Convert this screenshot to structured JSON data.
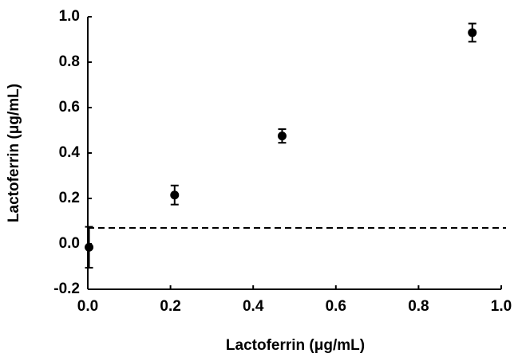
{
  "chart_data": {
    "type": "scatter",
    "xlabel": "Lactoferrin (μg/mL)",
    "ylabel": "Lactoferrin (μg/mL)",
    "x": [
      0.003,
      0.21,
      0.47,
      0.93
    ],
    "series": [
      {
        "color": "#000000",
        "values": [
          -0.015,
          0.215,
          0.475,
          0.93
        ],
        "errors": [
          0.09,
          0.042,
          0.03,
          0.04
        ]
      }
    ],
    "reference_line": {
      "value": 0.07,
      "style": "dashed"
    },
    "xlim": [
      0,
      1
    ],
    "ylim": [
      -0.2,
      1
    ],
    "xticks": [
      {
        "value": 0,
        "label": "0.0"
      },
      0.2,
      0.4,
      0.6,
      0.8,
      {
        "value": 1,
        "label": "1.0"
      }
    ],
    "yticks": [
      -0.2,
      {
        "value": 0,
        "label": "0.0"
      },
      0.2,
      0.4,
      0.6,
      0.8,
      {
        "value": 1,
        "label": "1.0"
      }
    ],
    "grid": false
  }
}
